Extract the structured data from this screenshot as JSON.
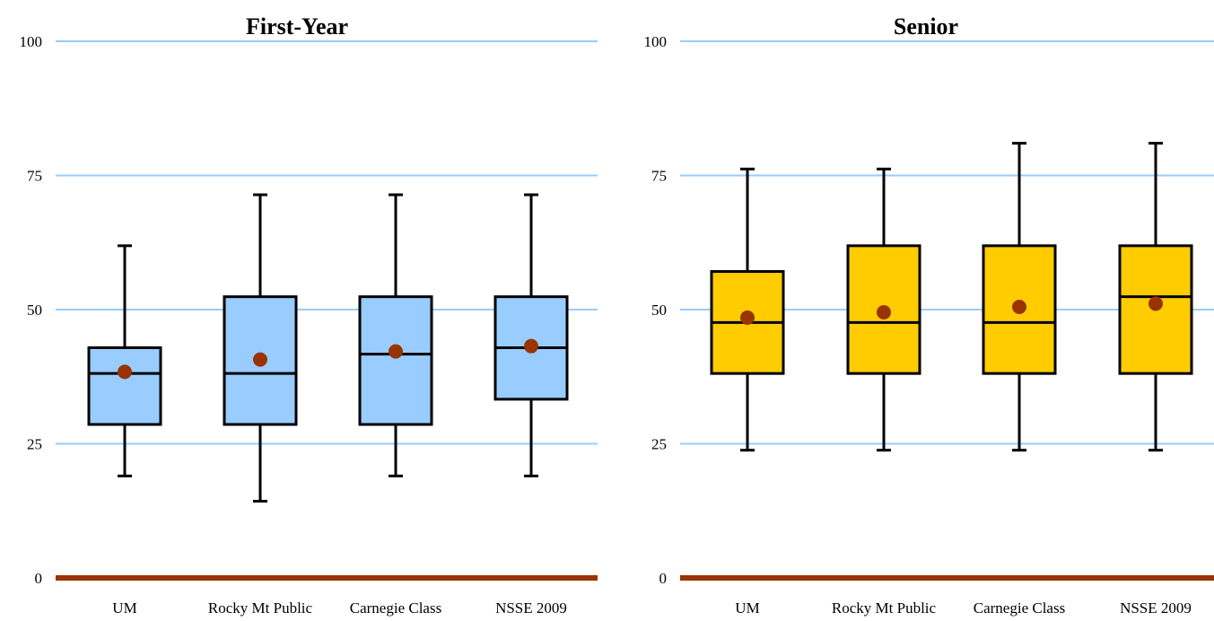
{
  "chart_data": [
    {
      "type": "boxplot",
      "title": "First-Year",
      "ylim": [
        0,
        100
      ],
      "yticks": [
        "0",
        "25",
        "50",
        "75",
        "100"
      ],
      "grid": true,
      "categories": [
        "UM",
        "Rocky Mt Public",
        "Carnegie Class",
        "NSSE 2009"
      ],
      "boxes": [
        {
          "whisker_low": 19,
          "q1": 28.6,
          "median": 38.1,
          "q3": 42.9,
          "whisker_high": 61.9,
          "mean": 38.4
        },
        {
          "whisker_low": 14.3,
          "q1": 28.6,
          "median": 38.1,
          "q3": 52.4,
          "whisker_high": 71.4,
          "mean": 40.7
        },
        {
          "whisker_low": 19,
          "q1": 28.6,
          "median": 41.7,
          "q3": 52.4,
          "whisker_high": 71.4,
          "mean": 42.2
        },
        {
          "whisker_low": 19,
          "q1": 33.3,
          "median": 42.9,
          "q3": 52.4,
          "whisker_high": 71.4,
          "mean": 43.2
        }
      ],
      "colors": {
        "box": "#99ccff",
        "mean": "#993300",
        "grid": "#99ccff",
        "axis": "#993300"
      }
    },
    {
      "type": "boxplot",
      "title": "Senior",
      "ylim": [
        0,
        100
      ],
      "yticks": [
        "0",
        "25",
        "50",
        "75",
        "100"
      ],
      "grid": true,
      "categories": [
        "UM",
        "Rocky Mt Public",
        "Carnegie Class",
        "NSSE 2009"
      ],
      "boxes": [
        {
          "whisker_low": 23.8,
          "q1": 38.1,
          "median": 47.6,
          "q3": 57.1,
          "whisker_high": 76.2,
          "mean": 48.5
        },
        {
          "whisker_low": 23.8,
          "q1": 38.1,
          "median": 47.6,
          "q3": 61.9,
          "whisker_high": 76.2,
          "mean": 49.5
        },
        {
          "whisker_low": 23.8,
          "q1": 38.1,
          "median": 47.6,
          "q3": 61.9,
          "whisker_high": 81,
          "mean": 50.5
        },
        {
          "whisker_low": 23.8,
          "q1": 38.1,
          "median": 52.4,
          "q3": 61.9,
          "whisker_high": 81,
          "mean": 51.1
        }
      ],
      "colors": {
        "box": "#ffcc00",
        "mean": "#993300",
        "grid": "#99ccff",
        "axis": "#993300"
      }
    }
  ]
}
